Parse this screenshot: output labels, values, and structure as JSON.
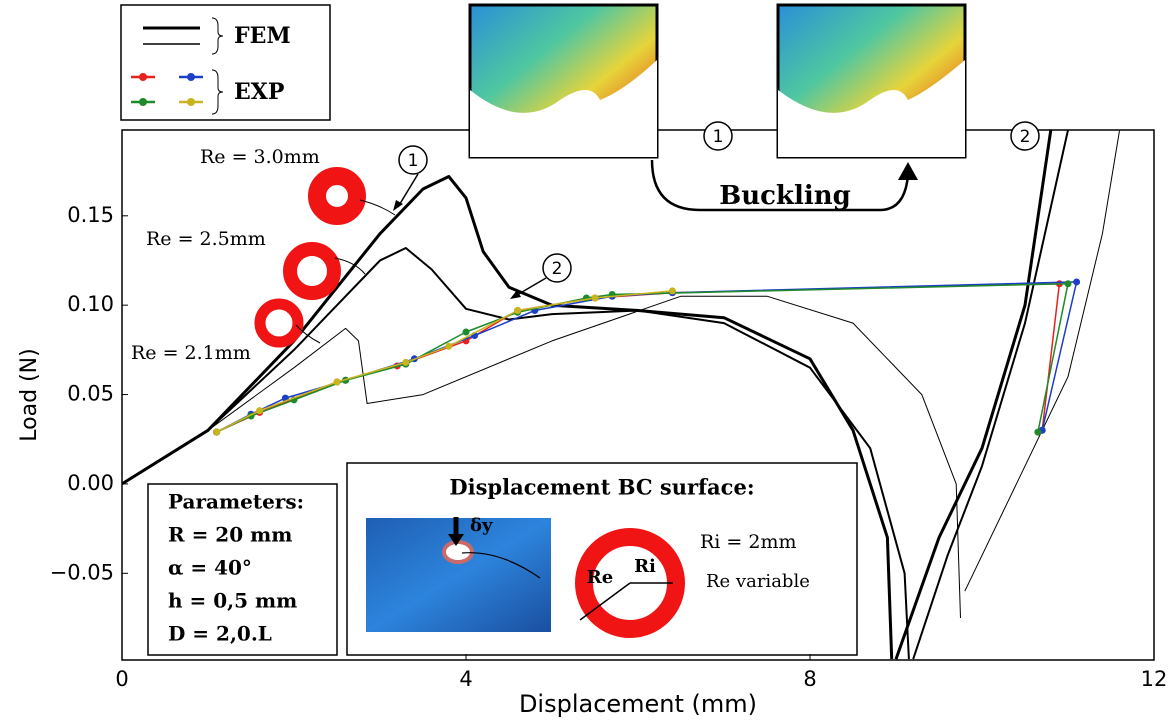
{
  "chart_data": {
    "type": "line",
    "xlabel": "Displacement (mm)",
    "ylabel": "Load (N)",
    "xlim": [
      0,
      12
    ],
    "ylim": [
      -0.0985,
      0.198
    ],
    "xticks": [
      0,
      4,
      8,
      12
    ],
    "yticks": [
      {
        "value": -0.05,
        "label": "−0.05"
      },
      {
        "value": 0,
        "label": "0.00"
      },
      0.05,
      {
        "value": 0.1,
        "label": "0.10"
      },
      0.15
    ],
    "legend": {
      "groups": [
        "FEM",
        "EXP"
      ]
    },
    "series": [
      {
        "name": "Re = 3.0mm",
        "color": "#000000",
        "width": 3,
        "x": [
          0,
          1,
          2,
          3,
          3.5,
          3.8,
          4.0,
          4.2,
          4.5,
          5,
          6,
          7,
          8,
          8.5,
          8.9,
          8.95,
          null,
          9.0,
          9.5,
          10,
          10.5,
          10.8
        ],
        "values": [
          0,
          0.03,
          0.08,
          0.14,
          0.165,
          0.172,
          0.16,
          0.13,
          0.11,
          0.1,
          0.097,
          0.093,
          0.07,
          0.03,
          -0.03,
          -0.098,
          null,
          -0.098,
          -0.03,
          0.02,
          0.1,
          0.198
        ]
      },
      {
        "name": "Re = 2.5mm",
        "color": "#000000",
        "width": 2,
        "x": [
          0,
          1,
          2,
          2.5,
          3,
          3.3,
          3.6,
          4,
          4.5,
          5,
          6,
          7,
          8,
          8.7,
          9.1,
          9.15,
          null,
          9.2,
          9.6,
          10,
          10.5,
          11
        ],
        "values": [
          0,
          0.03,
          0.075,
          0.1,
          0.125,
          0.132,
          0.12,
          0.098,
          0.092,
          0.095,
          0.097,
          0.09,
          0.065,
          0.02,
          -0.05,
          -0.098,
          null,
          -0.098,
          -0.04,
          0.01,
          0.09,
          0.198
        ]
      },
      {
        "name": "Re = 2.1mm",
        "color": "#000000",
        "width": 1,
        "x": [
          0,
          1,
          2,
          2.6,
          2.75,
          2.85,
          3.5,
          5,
          6.5,
          7.5,
          8.5,
          9.3,
          9.7,
          9.75,
          null,
          9.8,
          10.3,
          11,
          11.4,
          11.6
        ],
        "values": [
          0,
          0.03,
          0.065,
          0.087,
          0.08,
          0.045,
          0.05,
          0.08,
          0.105,
          0.105,
          0.09,
          0.05,
          0.0,
          -0.075,
          null,
          -0.06,
          -0.01,
          0.06,
          0.14,
          0.198
        ]
      },
      {
        "color": "#e8201e",
        "width": 1.5,
        "group": "EXP",
        "x": [
          1.1,
          1.6,
          2.5,
          3.2,
          4.0,
          4.6,
          5.5,
          6.4,
          10.9,
          10.7
        ],
        "values": [
          0.029,
          0.04,
          0.057,
          0.066,
          0.08,
          0.097,
          0.104,
          0.107,
          0.112,
          0.03
        ]
      },
      {
        "color": "#1c3fc8",
        "width": 1.5,
        "group": "EXP",
        "x": [
          1.1,
          1.5,
          1.9,
          2.6,
          3.4,
          4.1,
          4.8,
          5.7,
          6.4,
          11.1,
          10.7
        ],
        "values": [
          0.029,
          0.039,
          0.048,
          0.058,
          0.07,
          0.083,
          0.097,
          0.105,
          0.107,
          0.113,
          0.03
        ]
      },
      {
        "color": "#1e8a2a",
        "width": 1.5,
        "group": "EXP",
        "x": [
          1.1,
          1.5,
          2.0,
          2.6,
          3.3,
          4.0,
          4.6,
          5.4,
          5.7,
          11.0,
          10.65
        ],
        "values": [
          0.029,
          0.038,
          0.047,
          0.058,
          0.067,
          0.085,
          0.096,
          0.104,
          0.106,
          0.112,
          0.029
        ]
      },
      {
        "color": "#c8b41e",
        "width": 1.5,
        "group": "EXP",
        "x": [
          1.1,
          1.6,
          2.5,
          3.3,
          3.8,
          4.6,
          5.5,
          6.4
        ],
        "values": [
          0.029,
          0.041,
          0.057,
          0.068,
          0.077,
          0.097,
          0.104,
          0.108
        ]
      }
    ],
    "markers": [
      "1",
      "2"
    ],
    "buckling": "Buckling",
    "parameters": [
      "Parameters:",
      "R = 20 mm",
      "α = 40°",
      "h = 0,5 mm",
      "D = 2,0.L"
    ],
    "bc": {
      "title": "Displacement BC surface:",
      "ri": "Ri = 2mm",
      "re": "Re variable",
      "re_label": "Re",
      "ri_label": "Ri",
      "delta": "δy"
    }
  }
}
